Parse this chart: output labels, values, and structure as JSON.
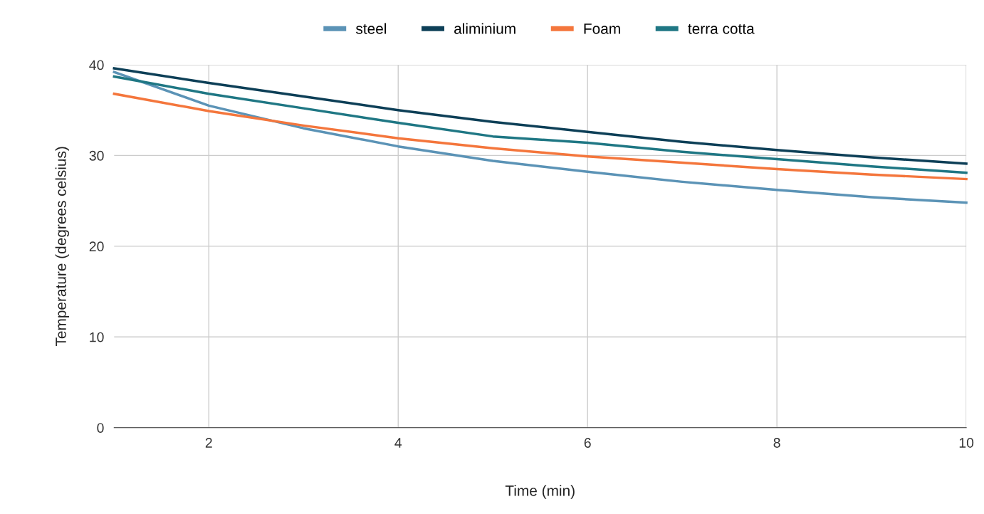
{
  "chart_data": {
    "type": "line",
    "xlabel": "Time (min)",
    "ylabel": "Temperature (degrees celsius)",
    "x": [
      1,
      2,
      3,
      4,
      5,
      6,
      7,
      8,
      9,
      10
    ],
    "series": [
      {
        "name": "steel",
        "color": "#5b93b6",
        "values": [
          39.2,
          35.5,
          33.0,
          31.0,
          29.4,
          28.2,
          27.1,
          26.2,
          25.4,
          24.8
        ]
      },
      {
        "name": "aliminium",
        "color": "#0d3f57",
        "values": [
          39.6,
          38.0,
          36.5,
          35.0,
          33.7,
          32.6,
          31.5,
          30.6,
          29.8,
          29.1
        ]
      },
      {
        "name": "Foam",
        "color": "#f4763c",
        "values": [
          36.8,
          34.9,
          33.3,
          31.9,
          30.8,
          29.9,
          29.2,
          28.5,
          27.9,
          27.4
        ]
      },
      {
        "name": "terra cotta",
        "color": "#1f7784",
        "values": [
          38.7,
          36.8,
          35.2,
          33.6,
          32.1,
          31.4,
          30.4,
          29.6,
          28.8,
          28.1
        ]
      }
    ],
    "xlim": [
      1,
      10
    ],
    "xticks": [
      2,
      4,
      6,
      8,
      10
    ],
    "ylim": [
      0,
      40
    ],
    "yticks": [
      0,
      10,
      20,
      30,
      40
    ],
    "grid": true,
    "legend": "top",
    "marker": "none",
    "line_style": "solid"
  }
}
